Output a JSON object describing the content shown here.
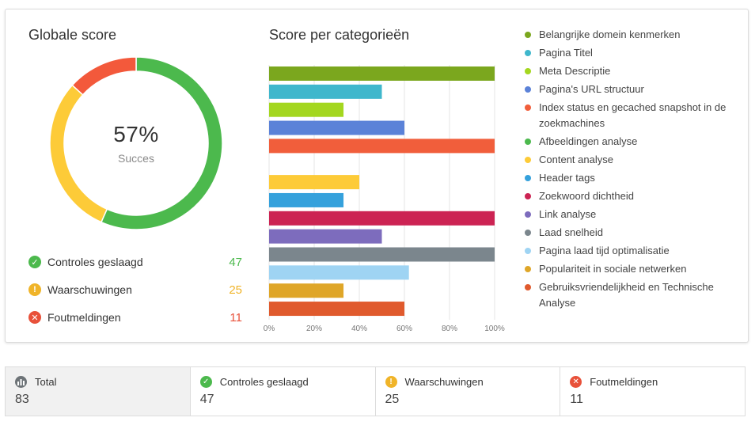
{
  "global": {
    "title": "Globale score",
    "percent": "57%",
    "percent_label": "Succes"
  },
  "summary": [
    {
      "label": "Controles geslaagd",
      "value": "47",
      "color": "#4cb94d",
      "icon": "check-icon"
    },
    {
      "label": "Waarschuwingen",
      "value": "25",
      "color": "#f0b429",
      "icon": "exclamation-icon"
    },
    {
      "label": "Foutmeldingen",
      "value": "11",
      "color": "#e8513a",
      "icon": "cross-icon"
    }
  ],
  "donut": {
    "segments": [
      {
        "name": "Controles geslaagd",
        "value": 47,
        "color": "#4cb94d"
      },
      {
        "name": "Waarschuwingen",
        "value": 25,
        "color": "#fdcb38"
      },
      {
        "name": "Foutmeldingen",
        "value": 11,
        "color": "#f3593b"
      }
    ]
  },
  "categories": {
    "title": "Score per categorieën"
  },
  "chart_data": {
    "type": "bar",
    "orientation": "horizontal",
    "title": "Score per categorieën",
    "xlim": [
      0,
      100
    ],
    "xticks": [
      "0%",
      "20%",
      "40%",
      "60%",
      "80%",
      "100%"
    ],
    "categories": [
      "Belangrijke domein kenmerken",
      "Pagina Titel",
      "Meta Descriptie",
      "Pagina's URL structuur",
      "Index status en gecached snapshot in de zoekmachines",
      "Afbeeldingen analyse",
      "Content analyse",
      "Header tags",
      "Zoekwoord dichtheid",
      "Link analyse",
      "Laad snelheid",
      "Pagina laad tijd optimalisatie",
      "Populariteit in sociale netwerken",
      "Gebruiksvriendelijkheid en Technische Analyse"
    ],
    "values": [
      100,
      50,
      33,
      60,
      100,
      0,
      40,
      33,
      100,
      50,
      100,
      62,
      33,
      60
    ],
    "colors": [
      "#7ba71e",
      "#3fb7cc",
      "#a4d71f",
      "#5b82d8",
      "#f15e3b",
      "#4cb94d",
      "#fdcb38",
      "#35a1dc",
      "#cc2353",
      "#7d6cbd",
      "#7b868d",
      "#9fd4f3",
      "#dfa628",
      "#e05a2d"
    ],
    "grid": true,
    "legend": "right"
  },
  "stats": [
    {
      "label": "Total",
      "value": "83",
      "color": "#6d7377",
      "icon": "chart-icon"
    },
    {
      "label": "Controles geslaagd",
      "value": "47",
      "color": "#4cb94d",
      "icon": "check-icon"
    },
    {
      "label": "Waarschuwingen",
      "value": "25",
      "color": "#f0b429",
      "icon": "exclamation-icon"
    },
    {
      "label": "Foutmeldingen",
      "value": "11",
      "color": "#e8513a",
      "icon": "cross-icon"
    }
  ]
}
